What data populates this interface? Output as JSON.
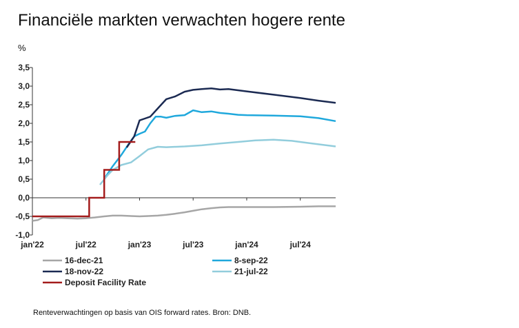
{
  "title": "Financiële markten verwachten hogere rente",
  "footnote": "Renteverwachtingen op  basis van OIS forward rates. Bron: DNB.",
  "chart_data": {
    "type": "line",
    "ylabel": "%",
    "ylim": [
      -1.0,
      3.5
    ],
    "yticks": [
      "3,5",
      "3,0",
      "2,5",
      "2,0",
      "1,5",
      "1,0",
      "0,5",
      "0,0",
      "-0,5",
      "-1,0"
    ],
    "ytick_values": [
      3.5,
      3.0,
      2.5,
      2.0,
      1.5,
      1.0,
      0.5,
      0.0,
      -0.5,
      -1.0
    ],
    "xticks": [
      "jan'22",
      "jul'22",
      "jan'23",
      "jul'23",
      "jan'24",
      "jul'24"
    ],
    "xtick_values": [
      2022.0,
      2022.5,
      2023.0,
      2023.5,
      2024.0,
      2024.5
    ],
    "xlim": [
      2022.0,
      2024.83
    ],
    "legend_position": "bottom",
    "series": [
      {
        "name": "16-dec-21",
        "color": "#a6a6a6",
        "points": [
          [
            2022.0,
            -0.62
          ],
          [
            2022.05,
            -0.6
          ],
          [
            2022.1,
            -0.53
          ],
          [
            2022.18,
            -0.55
          ],
          [
            2022.25,
            -0.54
          ],
          [
            2022.33,
            -0.55
          ],
          [
            2022.42,
            -0.56
          ],
          [
            2022.5,
            -0.55
          ],
          [
            2022.58,
            -0.53
          ],
          [
            2022.67,
            -0.5
          ],
          [
            2022.75,
            -0.48
          ],
          [
            2022.83,
            -0.48
          ],
          [
            2022.92,
            -0.49
          ],
          [
            2023.0,
            -0.5
          ],
          [
            2023.08,
            -0.49
          ],
          [
            2023.17,
            -0.48
          ],
          [
            2023.25,
            -0.46
          ],
          [
            2023.33,
            -0.43
          ],
          [
            2023.42,
            -0.39
          ],
          [
            2023.5,
            -0.35
          ],
          [
            2023.58,
            -0.31
          ],
          [
            2023.67,
            -0.28
          ],
          [
            2023.75,
            -0.26
          ],
          [
            2023.83,
            -0.25
          ],
          [
            2024.0,
            -0.25
          ],
          [
            2024.25,
            -0.25
          ],
          [
            2024.5,
            -0.24
          ],
          [
            2024.67,
            -0.23
          ],
          [
            2024.83,
            -0.23
          ]
        ]
      },
      {
        "name": "8-sep-22",
        "color": "#1fa8dc",
        "points": [
          [
            2022.68,
            0.55
          ],
          [
            2022.75,
            0.85
          ],
          [
            2022.83,
            1.15
          ],
          [
            2022.9,
            1.45
          ],
          [
            2022.95,
            1.65
          ],
          [
            2023.0,
            1.72
          ],
          [
            2023.05,
            1.78
          ],
          [
            2023.1,
            2.0
          ],
          [
            2023.15,
            2.18
          ],
          [
            2023.2,
            2.18
          ],
          [
            2023.25,
            2.15
          ],
          [
            2023.33,
            2.2
          ],
          [
            2023.42,
            2.22
          ],
          [
            2023.5,
            2.35
          ],
          [
            2023.58,
            2.3
          ],
          [
            2023.67,
            2.32
          ],
          [
            2023.75,
            2.28
          ],
          [
            2023.83,
            2.26
          ],
          [
            2023.92,
            2.23
          ],
          [
            2024.0,
            2.22
          ],
          [
            2024.25,
            2.21
          ],
          [
            2024.5,
            2.19
          ],
          [
            2024.67,
            2.14
          ],
          [
            2024.83,
            2.06
          ]
        ]
      },
      {
        "name": "18-nov-22",
        "color": "#1b2a52",
        "points": [
          [
            2022.88,
            1.35
          ],
          [
            2022.95,
            1.65
          ],
          [
            2023.0,
            2.08
          ],
          [
            2023.05,
            2.13
          ],
          [
            2023.1,
            2.18
          ],
          [
            2023.17,
            2.4
          ],
          [
            2023.25,
            2.65
          ],
          [
            2023.33,
            2.72
          ],
          [
            2023.42,
            2.85
          ],
          [
            2023.5,
            2.9
          ],
          [
            2023.58,
            2.92
          ],
          [
            2023.67,
            2.94
          ],
          [
            2023.75,
            2.91
          ],
          [
            2023.83,
            2.92
          ],
          [
            2024.0,
            2.86
          ],
          [
            2024.25,
            2.77
          ],
          [
            2024.5,
            2.68
          ],
          [
            2024.67,
            2.61
          ],
          [
            2024.83,
            2.55
          ]
        ]
      },
      {
        "name": "21-jul-22",
        "color": "#92cddc",
        "points": [
          [
            2022.63,
            0.35
          ],
          [
            2022.7,
            0.6
          ],
          [
            2022.75,
            0.75
          ],
          [
            2022.83,
            0.88
          ],
          [
            2022.92,
            0.95
          ],
          [
            2023.0,
            1.12
          ],
          [
            2023.08,
            1.3
          ],
          [
            2023.17,
            1.37
          ],
          [
            2023.25,
            1.36
          ],
          [
            2023.42,
            1.38
          ],
          [
            2023.58,
            1.41
          ],
          [
            2023.75,
            1.46
          ],
          [
            2023.92,
            1.5
          ],
          [
            2024.08,
            1.54
          ],
          [
            2024.25,
            1.56
          ],
          [
            2024.42,
            1.53
          ],
          [
            2024.58,
            1.47
          ],
          [
            2024.83,
            1.38
          ]
        ]
      },
      {
        "name": "Deposit Facility Rate",
        "color": "#a31b1b",
        "step": true,
        "points": [
          [
            2022.0,
            -0.5
          ],
          [
            2022.53,
            -0.5
          ],
          [
            2022.53,
            0.0
          ],
          [
            2022.67,
            0.0
          ],
          [
            2022.67,
            0.75
          ],
          [
            2022.81,
            0.75
          ],
          [
            2022.81,
            1.5
          ],
          [
            2022.96,
            1.5
          ]
        ]
      }
    ],
    "legend": [
      {
        "label": "16-dec-21",
        "color": "#a6a6a6"
      },
      {
        "label": "8-sep-22",
        "color": "#1fa8dc"
      },
      {
        "label": "18-nov-22",
        "color": "#1b2a52"
      },
      {
        "label": "21-jul-22",
        "color": "#92cddc"
      },
      {
        "label": "Deposit Facility Rate",
        "color": "#a31b1b"
      }
    ]
  }
}
